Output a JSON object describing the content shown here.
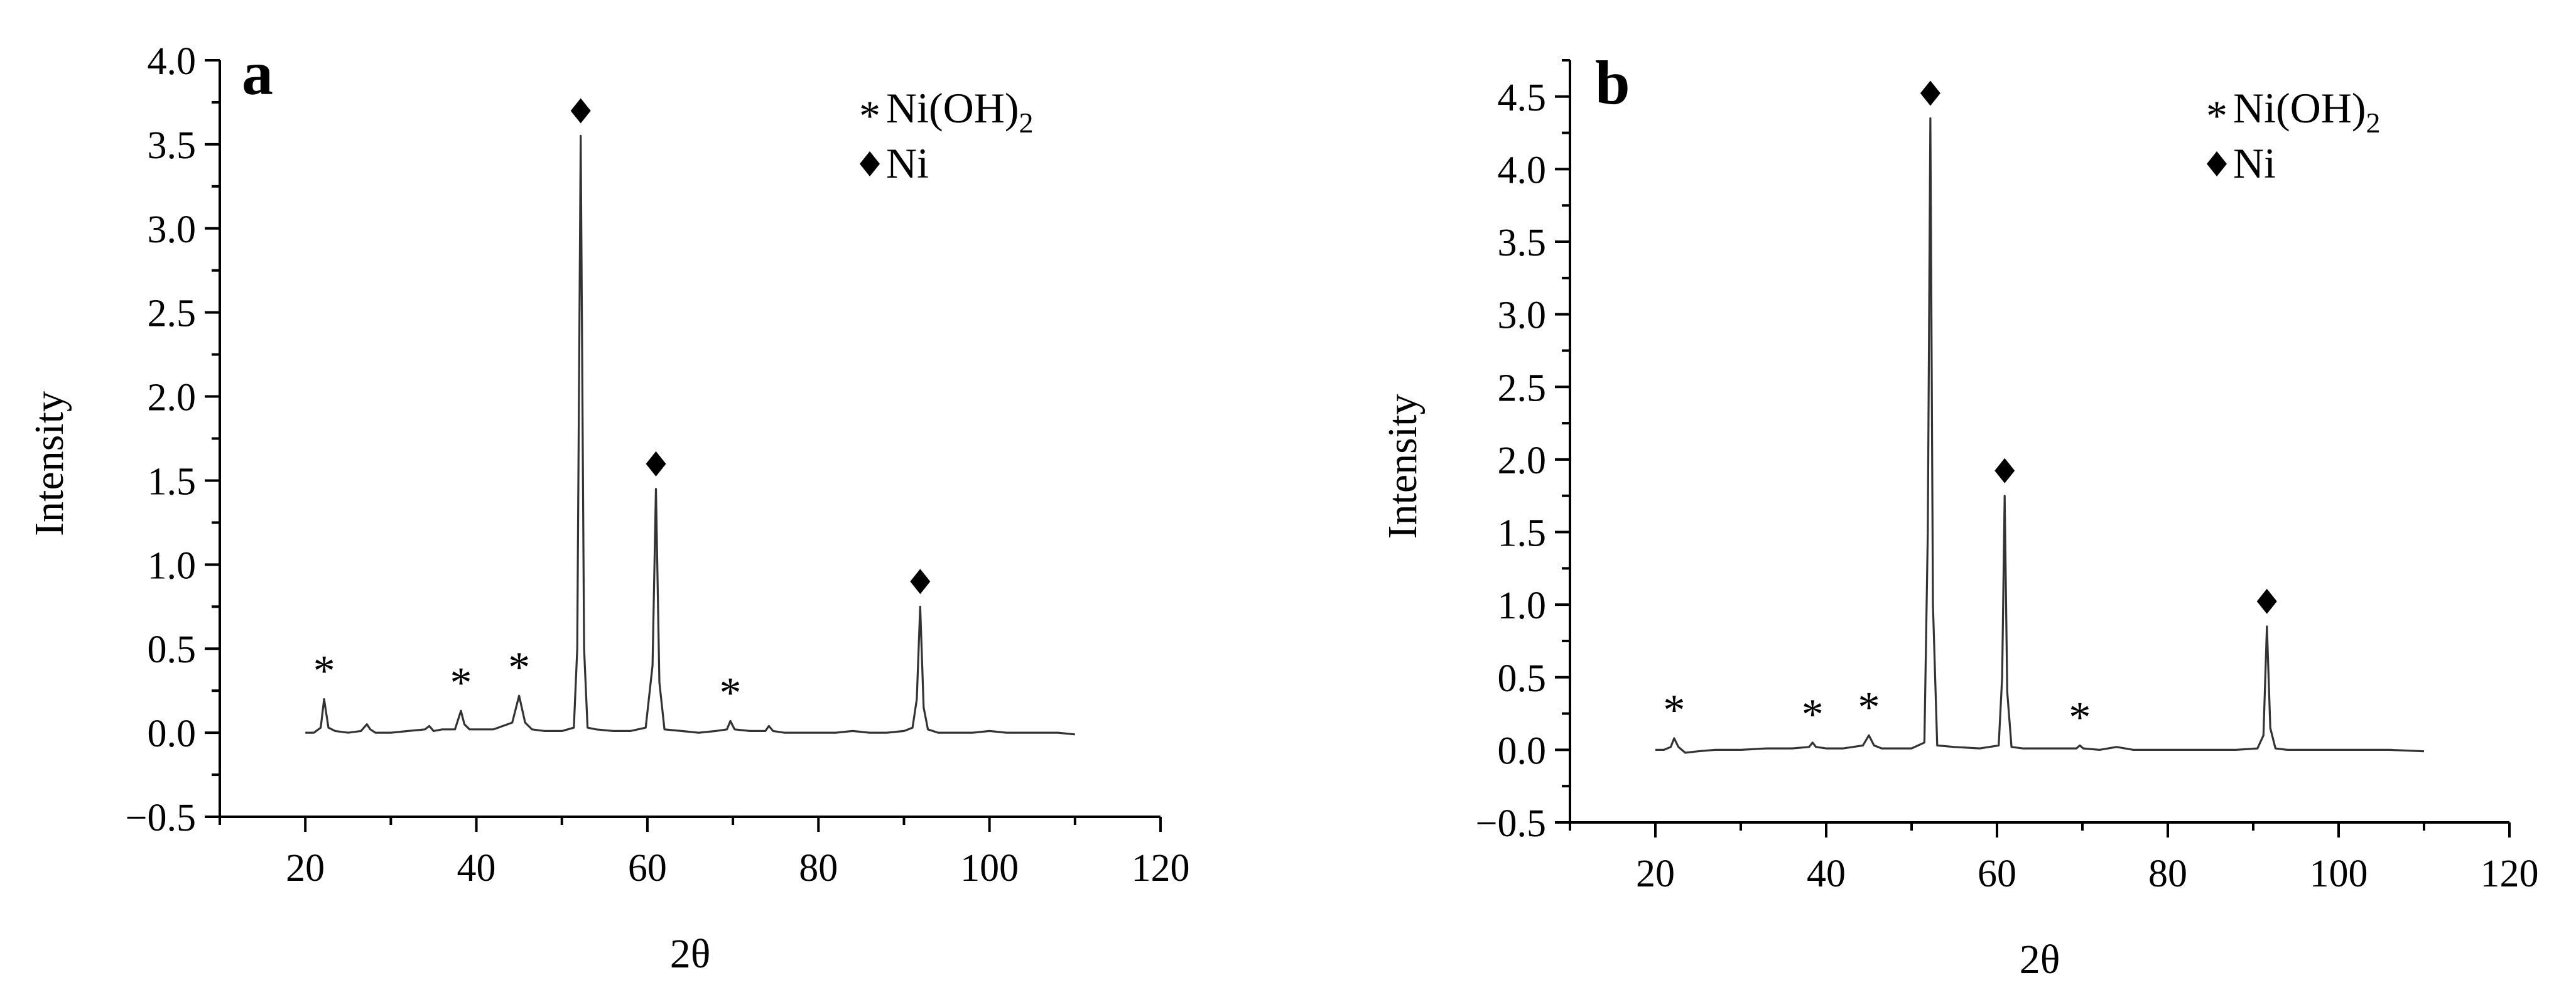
{
  "chart_data": [
    {
      "type": "line",
      "panel_label": "a",
      "xlabel": "2θ",
      "ylabel": "Intensity",
      "xlim": [
        10,
        120
      ],
      "ylim": [
        -0.5,
        4.0
      ],
      "xticks": [
        20,
        40,
        60,
        80,
        100,
        120
      ],
      "xtick_labels": [
        "20",
        "40",
        "60",
        "80",
        "100",
        "120"
      ],
      "yticks": [
        -0.5,
        0.0,
        0.5,
        1.0,
        1.5,
        2.0,
        2.5,
        3.0,
        3.5,
        4.0
      ],
      "ytick_labels": [
        "−0.5",
        "0.0",
        "0.5",
        "1.0",
        "1.5",
        "2.0",
        "2.5",
        "3.0",
        "3.5",
        "4.0"
      ],
      "legend": {
        "position": "top-right",
        "entries": [
          {
            "symbol": "*",
            "label_main": "Ni(OH)",
            "label_sub": "2"
          },
          {
            "symbol": "◆",
            "label_main": "Ni",
            "label_sub": ""
          }
        ]
      },
      "series": [
        {
          "x": [
            20,
            21,
            21.8,
            22.2,
            22.7,
            23.5,
            25,
            26.5,
            27.2,
            27.6,
            28.2,
            30,
            32,
            34,
            34.5,
            35,
            36,
            37.5,
            38.2,
            38.6,
            39.2,
            40,
            42,
            44.2,
            45.0,
            45.7,
            46.5,
            48,
            50,
            51.4,
            51.8,
            52.2,
            52.6,
            53,
            54,
            56,
            58,
            59.8,
            60.6,
            61.0,
            61.4,
            62,
            64,
            66,
            68,
            69.3,
            69.7,
            70.2,
            72,
            73.8,
            74.2,
            74.7,
            76,
            78,
            80,
            82,
            84,
            86,
            88,
            90,
            91.0,
            91.5,
            91.9,
            92.3,
            92.8,
            94,
            96,
            98,
            100,
            102,
            104,
            106,
            108,
            110
          ],
          "y": [
            0.0,
            0.0,
            0.03,
            0.2,
            0.03,
            0.01,
            0.0,
            0.01,
            0.05,
            0.02,
            0.0,
            0.0,
            0.01,
            0.02,
            0.04,
            0.01,
            0.02,
            0.02,
            0.13,
            0.05,
            0.02,
            0.02,
            0.02,
            0.06,
            0.22,
            0.06,
            0.02,
            0.01,
            0.01,
            0.03,
            0.5,
            3.55,
            0.5,
            0.03,
            0.02,
            0.01,
            0.01,
            0.03,
            0.4,
            1.45,
            0.3,
            0.02,
            0.01,
            0.0,
            0.01,
            0.02,
            0.07,
            0.02,
            0.01,
            0.01,
            0.04,
            0.01,
            0.0,
            0.0,
            0.0,
            0.0,
            0.01,
            0.0,
            0.0,
            0.01,
            0.03,
            0.2,
            0.75,
            0.15,
            0.02,
            0.0,
            0.0,
            0.0,
            0.01,
            0.0,
            0.0,
            0.0,
            0.0,
            -0.01
          ]
        }
      ],
      "annotations": [
        {
          "symbol": "*",
          "x": 22.2,
          "y": 0.2
        },
        {
          "symbol": "*",
          "x": 38.2,
          "y": 0.13
        },
        {
          "symbol": "*",
          "x": 45.0,
          "y": 0.22
        },
        {
          "symbol": "*",
          "x": 69.7,
          "y": 0.07
        },
        {
          "symbol": "◆",
          "x": 52.2,
          "y": 3.55
        },
        {
          "symbol": "◆",
          "x": 61.0,
          "y": 1.45
        },
        {
          "symbol": "◆",
          "x": 91.9,
          "y": 0.75
        }
      ]
    },
    {
      "type": "line",
      "panel_label": "b",
      "xlabel": "2θ",
      "ylabel": "Intensity",
      "xlim": [
        10,
        120
      ],
      "ylim": [
        -0.5,
        4.75
      ],
      "xticks": [
        20,
        40,
        60,
        80,
        100,
        120
      ],
      "xtick_labels": [
        "20",
        "40",
        "60",
        "80",
        "100",
        "120"
      ],
      "yticks": [
        -0.5,
        0.0,
        0.5,
        1.0,
        1.5,
        2.0,
        2.5,
        3.0,
        3.5,
        4.0,
        4.5
      ],
      "ytick_labels": [
        "−0.5",
        "0.0",
        "0.5",
        "1.0",
        "1.5",
        "2.0",
        "2.5",
        "3.0",
        "3.5",
        "4.0",
        "4.5"
      ],
      "legend": {
        "position": "top-right",
        "entries": [
          {
            "symbol": "*",
            "label_main": "Ni(OH)",
            "label_sub": "2"
          },
          {
            "symbol": "◆",
            "label_main": "Ni",
            "label_sub": ""
          }
        ]
      },
      "series": [
        {
          "x": [
            20,
            21,
            21.8,
            22.2,
            22.7,
            23.5,
            25,
            27,
            30,
            33,
            36,
            38.0,
            38.4,
            38.8,
            40,
            42,
            44.3,
            45.0,
            45.6,
            46.5,
            48,
            50,
            51.5,
            51.9,
            52.2,
            52.5,
            53,
            55,
            58,
            60.2,
            60.6,
            60.9,
            61.2,
            61.7,
            63,
            66,
            69.3,
            69.7,
            70.1,
            72,
            74,
            76,
            80,
            84,
            88,
            90.5,
            91.2,
            91.6,
            92.0,
            92.6,
            94,
            98,
            102,
            106,
            110
          ],
          "y": [
            0.0,
            0.0,
            0.02,
            0.08,
            0.02,
            -0.02,
            -0.01,
            0.0,
            0.0,
            0.01,
            0.01,
            0.02,
            0.05,
            0.02,
            0.01,
            0.01,
            0.03,
            0.1,
            0.03,
            0.01,
            0.01,
            0.01,
            0.05,
            1.5,
            4.35,
            1.0,
            0.03,
            0.02,
            0.01,
            0.03,
            0.5,
            1.75,
            0.4,
            0.02,
            0.01,
            0.01,
            0.01,
            0.03,
            0.01,
            0.0,
            0.02,
            0.0,
            0.0,
            0.0,
            0.0,
            0.01,
            0.1,
            0.85,
            0.15,
            0.01,
            0.0,
            0.0,
            0.0,
            0.0,
            -0.01
          ]
        }
      ],
      "annotations": [
        {
          "symbol": "*",
          "x": 22.2,
          "y": 0.08
        },
        {
          "symbol": "*",
          "x": 38.4,
          "y": 0.05
        },
        {
          "symbol": "*",
          "x": 45.0,
          "y": 0.1
        },
        {
          "symbol": "*",
          "x": 69.7,
          "y": 0.03
        },
        {
          "symbol": "◆",
          "x": 52.2,
          "y": 4.35
        },
        {
          "symbol": "◆",
          "x": 60.9,
          "y": 1.75
        },
        {
          "symbol": "◆",
          "x": 91.6,
          "y": 0.85
        }
      ]
    }
  ]
}
